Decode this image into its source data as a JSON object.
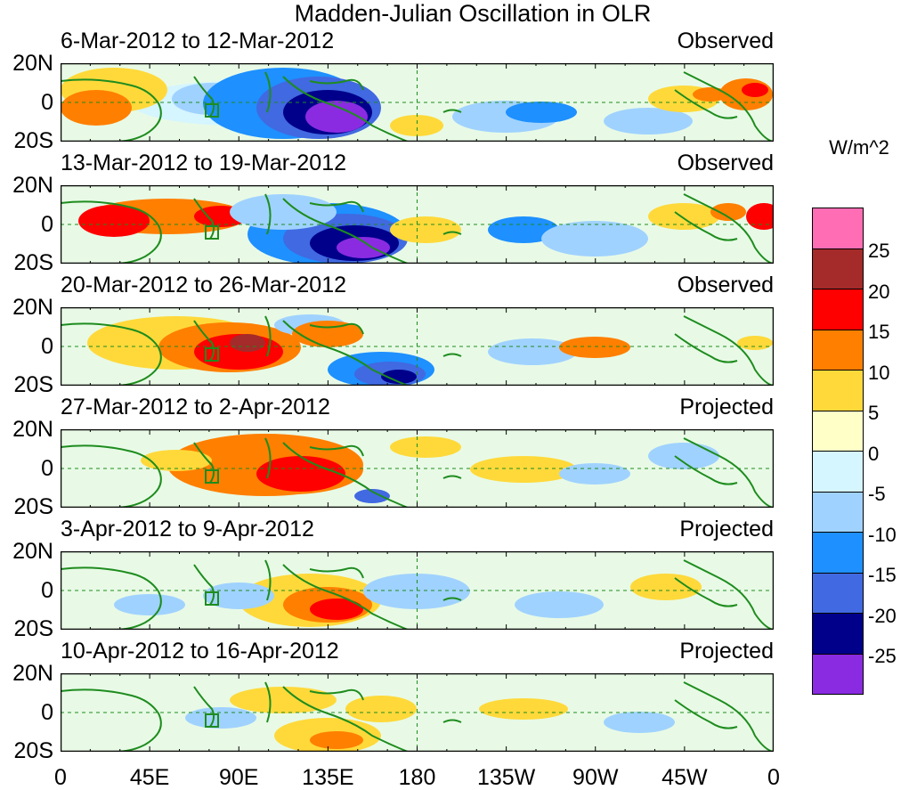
{
  "title": "Madden-Julian Oscillation in OLR",
  "unit_label": "W/m^2",
  "lat_labels": [
    "20N",
    "0",
    "20S"
  ],
  "lon_labels": [
    "0",
    "45E",
    "90E",
    "135E",
    "180",
    "135W",
    "90W",
    "45W",
    "0"
  ],
  "panels": [
    {
      "date_range": "6-Mar-2012 to 12-Mar-2012",
      "status": "Observed"
    },
    {
      "date_range": "13-Mar-2012 to 19-Mar-2012",
      "status": "Observed"
    },
    {
      "date_range": "20-Mar-2012 to 26-Mar-2012",
      "status": "Observed"
    },
    {
      "date_range": "27-Mar-2012 to 2-Apr-2012",
      "status": "Projected"
    },
    {
      "date_range": "3-Apr-2012 to 9-Apr-2012",
      "status": "Projected"
    },
    {
      "date_range": "10-Apr-2012 to 16-Apr-2012",
      "status": "Projected"
    }
  ],
  "colorbar": {
    "labels": [
      "25",
      "20",
      "15",
      "10",
      "5",
      "0",
      "-5",
      "-10",
      "-15",
      "-20",
      "-25"
    ],
    "colors": [
      "#ff6eb4",
      "#a52a2a",
      "#ff0000",
      "#ff7f00",
      "#ffd93a",
      "#ffffc8",
      "#d5f5ff",
      "#a0d2ff",
      "#1e90ff",
      "#4169e1",
      "#00008b",
      "#8a2be2"
    ]
  },
  "colors": {
    "coastline": "#1e8c1e",
    "reference_line": "#1e8c1e"
  }
}
